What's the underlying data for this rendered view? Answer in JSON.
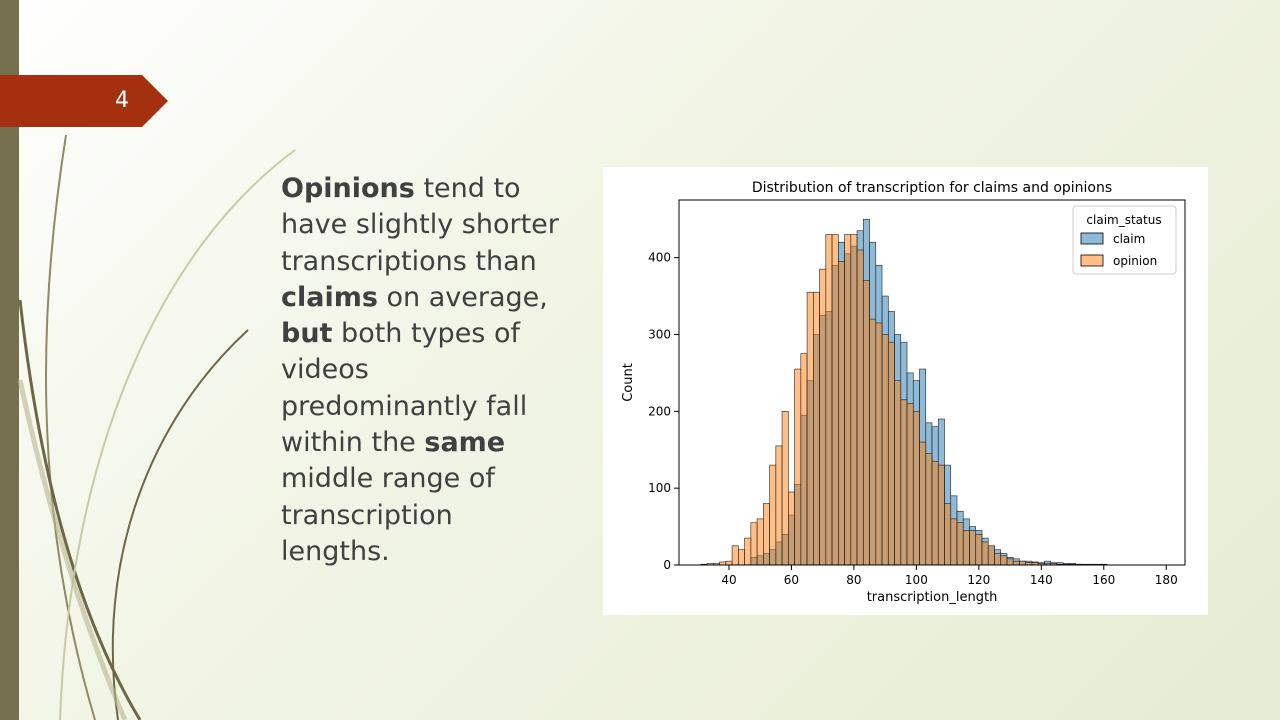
{
  "slide": {
    "number": "4",
    "text_runs": [
      {
        "text": "Opinions",
        "bold": true
      },
      {
        "text": " tend to have slightly shorter transcriptions than ",
        "bold": false
      },
      {
        "text": "claims",
        "bold": true
      },
      {
        "text": " on average, ",
        "bold": false
      },
      {
        "text": "but",
        "bold": true
      },
      {
        "text": " both types of videos predominantly fall within the ",
        "bold": false
      },
      {
        "text": "same",
        "bold": true
      },
      {
        "text": " middle range of transcription lengths.",
        "bold": false
      }
    ]
  },
  "colors": {
    "accent_tag": "#a5300f",
    "left_bar": "#76704f",
    "claim": "#1f77b4",
    "opinion": "#ff7f0e"
  },
  "chart_data": {
    "type": "bar",
    "subtype": "overlaid histogram",
    "title": "Distribution of transcription for claims and opinions",
    "xlabel": "transcription_length",
    "ylabel": "Count",
    "xlim": [
      24,
      186
    ],
    "ylim": [
      0,
      475
    ],
    "xticks": [
      40,
      60,
      80,
      100,
      120,
      140,
      160,
      180
    ],
    "yticks": [
      0,
      100,
      200,
      300,
      400
    ],
    "bin_start": 31,
    "bin_width": 2,
    "legend": {
      "title": "claim_status",
      "position": "upper right",
      "entries": [
        "claim",
        "opinion"
      ]
    },
    "grid": false,
    "series": [
      {
        "name": "claim",
        "color": "#1f77b4",
        "values": [
          0,
          0,
          0,
          0,
          0,
          0,
          0,
          0,
          10,
          12,
          15,
          20,
          30,
          40,
          65,
          105,
          195,
          240,
          300,
          325,
          330,
          390,
          420,
          405,
          415,
          435,
          450,
          420,
          390,
          350,
          330,
          300,
          290,
          250,
          240,
          255,
          185,
          180,
          190,
          130,
          90,
          70,
          60,
          50,
          45,
          35,
          25,
          20,
          15,
          10,
          8,
          5,
          5,
          4,
          3,
          5,
          3,
          3,
          2,
          2,
          1,
          1,
          1,
          1,
          1,
          0,
          0,
          0,
          0,
          0,
          0,
          0,
          0,
          0,
          0,
          0,
          0,
          0,
          0,
          0,
          0,
          0
        ]
      },
      {
        "name": "opinion",
        "color": "#ff7f0e",
        "values": [
          1,
          2,
          2,
          4,
          5,
          25,
          20,
          35,
          55,
          60,
          80,
          130,
          155,
          200,
          95,
          255,
          275,
          355,
          355,
          385,
          430,
          430,
          395,
          430,
          430,
          410,
          370,
          320,
          315,
          300,
          290,
          240,
          215,
          210,
          200,
          160,
          145,
          135,
          130,
          80,
          60,
          55,
          45,
          45,
          40,
          30,
          25,
          15,
          12,
          8,
          5,
          5,
          3,
          3,
          2,
          2,
          2,
          1,
          1,
          1,
          1,
          0,
          0,
          0,
          0,
          0,
          0,
          0,
          0,
          0,
          0,
          0,
          0,
          0,
          0,
          0,
          0,
          0,
          0,
          0,
          0,
          0
        ]
      }
    ]
  }
}
